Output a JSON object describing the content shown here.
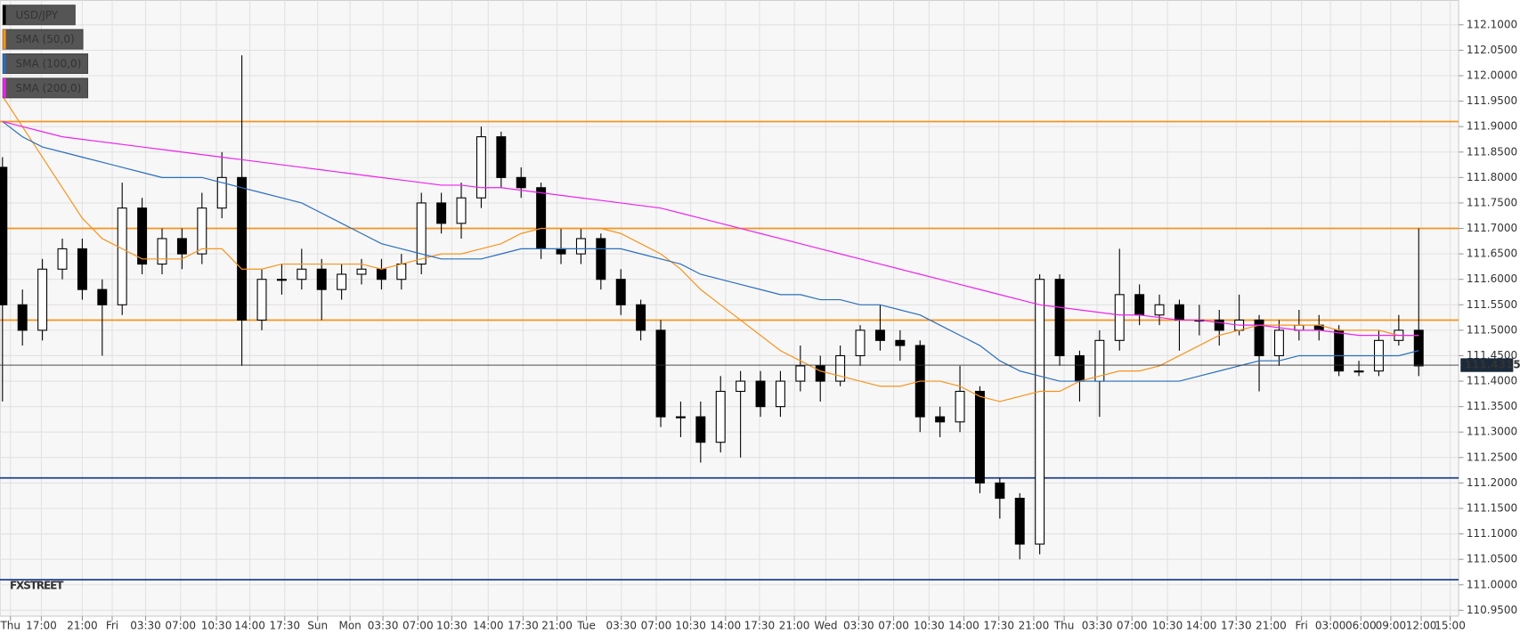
{
  "chart_data": {
    "type": "candlestick",
    "watermark": "FXSTREET",
    "x": [
      0,
      4,
      8,
      12,
      16,
      20,
      24,
      28,
      32,
      36,
      40,
      44,
      48,
      52,
      56,
      60,
      64,
      68,
      72,
      76,
      80,
      84,
      88,
      92,
      96,
      100,
      104,
      108,
      112,
      116,
      120,
      124,
      128,
      132,
      136,
      140,
      144,
      148,
      152,
      156,
      160,
      164,
      168,
      172,
      176,
      180,
      184,
      188,
      192,
      196,
      200,
      204,
      208,
      212,
      216,
      220,
      224,
      228,
      232,
      236,
      240,
      244,
      248,
      252,
      256,
      260,
      264,
      268,
      272,
      276,
      280,
      284
    ],
    "xlim": [
      -0.5,
      292
    ],
    "xticks": [
      {
        "value": 1.6,
        "label": "Thu"
      },
      {
        "value": 7.8,
        "label": "17:00"
      },
      {
        "value": 16,
        "label": "21:00"
      },
      {
        "value": 22,
        "label": "Fri"
      },
      {
        "value": 28.7,
        "label": "03:30"
      },
      {
        "value": 35.7,
        "label": "07:00"
      },
      {
        "value": 42.9,
        "label": "10:30"
      },
      {
        "value": 49.6,
        "label": "14:00"
      },
      {
        "value": 56.6,
        "label": "17:30"
      },
      {
        "value": 63.2,
        "label": "Sun"
      },
      {
        "value": 69.7,
        "label": "Mon"
      },
      {
        "value": 76.3,
        "label": "03:30"
      },
      {
        "value": 83.3,
        "label": "07:00"
      },
      {
        "value": 90.1,
        "label": "10:30"
      },
      {
        "value": 97.4,
        "label": "14:00"
      },
      {
        "value": 104.4,
        "label": "17:30"
      },
      {
        "value": 111.2,
        "label": "21:00"
      },
      {
        "value": 117.1,
        "label": "Tue"
      },
      {
        "value": 124.1,
        "label": "03:30"
      },
      {
        "value": 131.1,
        "label": "07:00"
      },
      {
        "value": 138,
        "label": "10:30"
      },
      {
        "value": 145,
        "label": "14:00"
      },
      {
        "value": 151.8,
        "label": "17:30"
      },
      {
        "value": 158.8,
        "label": "21:00"
      },
      {
        "value": 165.1,
        "label": "Wed"
      },
      {
        "value": 171.7,
        "label": "03:30"
      },
      {
        "value": 178.7,
        "label": "07:00"
      },
      {
        "value": 185.8,
        "label": "10:30"
      },
      {
        "value": 192.8,
        "label": "14:00"
      },
      {
        "value": 199.8,
        "label": "17:30"
      },
      {
        "value": 206.8,
        "label": "21:00"
      },
      {
        "value": 212.9,
        "label": "Thu"
      },
      {
        "value": 219.5,
        "label": "03:30"
      },
      {
        "value": 226.5,
        "label": "07:00"
      },
      {
        "value": 233.6,
        "label": "10:30"
      },
      {
        "value": 240.4,
        "label": "14:00"
      },
      {
        "value": 247.4,
        "label": "17:30"
      },
      {
        "value": 254.4,
        "label": "21:00"
      },
      {
        "value": 260.5,
        "label": "Fri"
      },
      {
        "value": 266.3,
        "label": "03:00"
      },
      {
        "value": 272.4,
        "label": "06:00"
      },
      {
        "value": 278.4,
        "label": "09:00"
      },
      {
        "value": 284.5,
        "label": "12:00"
      },
      {
        "value": 290.3,
        "label": "15:00"
      }
    ],
    "ylim": [
      110.9385,
      112.148
    ],
    "yticks": [
      {
        "value": 110.95,
        "label": "110.9500"
      },
      {
        "value": 111,
        "label": "111.0000"
      },
      {
        "value": 111.05,
        "label": "111.0500"
      },
      {
        "value": 111.1,
        "label": "111.1000"
      },
      {
        "value": 111.15,
        "label": "111.1500"
      },
      {
        "value": 111.2,
        "label": "111.2000"
      },
      {
        "value": 111.25,
        "label": "111.2500"
      },
      {
        "value": 111.3,
        "label": "111.3000"
      },
      {
        "value": 111.35,
        "label": "111.3500"
      },
      {
        "value": 111.4,
        "label": "111.4000"
      },
      {
        "value": 111.45,
        "label": "111.4500"
      },
      {
        "value": 111.5,
        "label": "111.5000"
      },
      {
        "value": 111.55,
        "label": "111.5500"
      },
      {
        "value": 111.6,
        "label": "111.6000"
      },
      {
        "value": 111.65,
        "label": "111.6500"
      },
      {
        "value": 111.7,
        "label": "111.7000"
      },
      {
        "value": 111.75,
        "label": "111.7500"
      },
      {
        "value": 111.8,
        "label": "111.8000"
      },
      {
        "value": 111.85,
        "label": "111.8500"
      },
      {
        "value": 111.9,
        "label": "111.9000"
      },
      {
        "value": 111.95,
        "label": "111.9500"
      },
      {
        "value": 112,
        "label": "112.0000"
      },
      {
        "value": 112.05,
        "label": "112.0500"
      },
      {
        "value": 112.1,
        "label": "112.1000"
      }
    ],
    "grid": true,
    "series": [
      {
        "name": "USD/JPY",
        "color": "#000000",
        "open": [
          111.82,
          111.55,
          111.5,
          111.62,
          111.66,
          111.58,
          111.55,
          111.74,
          111.63,
          111.68,
          111.65,
          111.74,
          111.8,
          111.52,
          111.6,
          111.6,
          111.62,
          111.58,
          111.61,
          111.62,
          111.6,
          111.63,
          111.75,
          111.71,
          111.76,
          111.88,
          111.8,
          111.78,
          111.66,
          111.65,
          111.68,
          111.6,
          111.55,
          111.5,
          111.33,
          111.33,
          111.28,
          111.38,
          111.4,
          111.35,
          111.4,
          111.43,
          111.4,
          111.45,
          111.5,
          111.48,
          111.47,
          111.33,
          111.32,
          111.38,
          111.2,
          111.17,
          111.08,
          111.6,
          111.45,
          111.4,
          111.48,
          111.57,
          111.53,
          111.55,
          111.52,
          111.52,
          111.5,
          111.52,
          111.45,
          111.5,
          111.51,
          111.5,
          111.42,
          111.42,
          111.48,
          111.5
        ],
        "high": [
          111.84,
          111.58,
          111.64,
          111.68,
          111.68,
          111.6,
          111.79,
          111.76,
          111.7,
          111.7,
          111.77,
          111.85,
          112.04,
          111.62,
          111.63,
          111.66,
          111.64,
          111.63,
          111.64,
          111.64,
          111.65,
          111.77,
          111.77,
          111.79,
          111.9,
          111.89,
          111.82,
          111.79,
          111.7,
          111.7,
          111.69,
          111.62,
          111.56,
          111.52,
          111.36,
          111.36,
          111.41,
          111.42,
          111.42,
          111.42,
          111.47,
          111.45,
          111.47,
          111.51,
          111.55,
          111.5,
          111.48,
          111.35,
          111.43,
          111.39,
          111.21,
          111.18,
          111.61,
          111.61,
          111.46,
          111.5,
          111.66,
          111.59,
          111.57,
          111.56,
          111.55,
          111.54,
          111.57,
          111.53,
          111.52,
          111.54,
          111.53,
          111.51,
          111.44,
          111.5,
          111.53,
          111.7
        ],
        "low": [
          111.36,
          111.47,
          111.48,
          111.6,
          111.56,
          111.45,
          111.53,
          111.61,
          111.61,
          111.62,
          111.63,
          111.72,
          111.43,
          111.5,
          111.57,
          111.58,
          111.52,
          111.56,
          111.59,
          111.58,
          111.58,
          111.61,
          111.69,
          111.68,
          111.74,
          111.78,
          111.76,
          111.64,
          111.63,
          111.63,
          111.58,
          111.53,
          111.48,
          111.31,
          111.29,
          111.24,
          111.26,
          111.25,
          111.33,
          111.33,
          111.38,
          111.36,
          111.39,
          111.43,
          111.46,
          111.44,
          111.3,
          111.29,
          111.3,
          111.18,
          111.13,
          111.05,
          111.06,
          111.43,
          111.36,
          111.33,
          111.46,
          111.51,
          111.51,
          111.46,
          111.49,
          111.47,
          111.49,
          111.38,
          111.43,
          111.48,
          111.48,
          111.41,
          111.41,
          111.41,
          111.47,
          111.41
        ],
        "close": [
          111.55,
          111.5,
          111.62,
          111.66,
          111.58,
          111.55,
          111.74,
          111.63,
          111.68,
          111.65,
          111.74,
          111.8,
          111.52,
          111.6,
          111.6,
          111.62,
          111.58,
          111.61,
          111.62,
          111.6,
          111.63,
          111.75,
          111.71,
          111.76,
          111.88,
          111.8,
          111.78,
          111.66,
          111.65,
          111.68,
          111.6,
          111.55,
          111.5,
          111.33,
          111.33,
          111.28,
          111.38,
          111.4,
          111.35,
          111.4,
          111.43,
          111.4,
          111.45,
          111.5,
          111.48,
          111.47,
          111.33,
          111.32,
          111.38,
          111.2,
          111.17,
          111.08,
          111.6,
          111.45,
          111.4,
          111.48,
          111.57,
          111.53,
          111.55,
          111.52,
          111.52,
          111.5,
          111.52,
          111.45,
          111.5,
          111.51,
          111.5,
          111.42,
          111.42,
          111.48,
          111.5,
          111.43
        ]
      },
      {
        "name": "SMA (50,0)",
        "color": "#f7931e",
        "values": [
          111.96,
          111.9,
          111.84,
          111.78,
          111.72,
          111.68,
          111.66,
          111.64,
          111.64,
          111.64,
          111.66,
          111.66,
          111.62,
          111.62,
          111.63,
          111.63,
          111.63,
          111.63,
          111.63,
          111.62,
          111.63,
          111.64,
          111.65,
          111.65,
          111.66,
          111.67,
          111.69,
          111.7,
          111.7,
          111.7,
          111.7,
          111.69,
          111.67,
          111.65,
          111.62,
          111.58,
          111.55,
          111.52,
          111.49,
          111.46,
          111.44,
          111.42,
          111.41,
          111.4,
          111.39,
          111.39,
          111.4,
          111.4,
          111.39,
          111.37,
          111.36,
          111.37,
          111.38,
          111.38,
          111.4,
          111.41,
          111.42,
          111.42,
          111.43,
          111.45,
          111.47,
          111.49,
          111.5,
          111.51,
          111.51,
          111.51,
          111.51,
          111.5,
          111.5,
          111.5,
          111.49,
          111.49
        ]
      },
      {
        "name": "SMA (100,0)",
        "color": "#2a6ebb",
        "values": [
          111.91,
          111.88,
          111.86,
          111.85,
          111.84,
          111.83,
          111.82,
          111.81,
          111.8,
          111.8,
          111.8,
          111.79,
          111.78,
          111.77,
          111.76,
          111.75,
          111.73,
          111.71,
          111.69,
          111.67,
          111.66,
          111.65,
          111.64,
          111.64,
          111.64,
          111.65,
          111.66,
          111.66,
          111.66,
          111.66,
          111.66,
          111.66,
          111.65,
          111.64,
          111.63,
          111.61,
          111.6,
          111.59,
          111.58,
          111.57,
          111.57,
          111.56,
          111.56,
          111.55,
          111.55,
          111.54,
          111.53,
          111.51,
          111.49,
          111.47,
          111.44,
          111.42,
          111.41,
          111.4,
          111.4,
          111.4,
          111.4,
          111.4,
          111.4,
          111.4,
          111.41,
          111.42,
          111.43,
          111.44,
          111.44,
          111.45,
          111.45,
          111.45,
          111.45,
          111.45,
          111.45,
          111.46
        ]
      },
      {
        "name": "SMA (200,0)",
        "color": "#ee22ee",
        "values": [
          111.91,
          111.9,
          111.89,
          111.88,
          111.875,
          111.87,
          111.865,
          111.86,
          111.855,
          111.85,
          111.845,
          111.84,
          111.835,
          111.83,
          111.825,
          111.82,
          111.815,
          111.81,
          111.805,
          111.8,
          111.795,
          111.79,
          111.785,
          111.785,
          111.78,
          111.78,
          111.775,
          111.77,
          111.765,
          111.76,
          111.755,
          111.75,
          111.745,
          111.74,
          111.73,
          111.72,
          111.71,
          111.7,
          111.69,
          111.68,
          111.67,
          111.66,
          111.65,
          111.64,
          111.63,
          111.62,
          111.61,
          111.6,
          111.59,
          111.58,
          111.57,
          111.56,
          111.55,
          111.545,
          111.54,
          111.535,
          111.53,
          111.53,
          111.525,
          111.52,
          111.52,
          111.515,
          111.51,
          111.51,
          111.505,
          111.5,
          111.5,
          111.495,
          111.49,
          111.49,
          111.49,
          111.49
        ]
      }
    ],
    "hlines": [
      {
        "value": 111.91,
        "color": "#f7931e"
      },
      {
        "value": 111.7,
        "color": "#f7931e"
      },
      {
        "value": 111.52,
        "color": "#f7931e"
      },
      {
        "value": 111.21,
        "color": "#1f3f8f"
      },
      {
        "value": 111.01,
        "color": "#1f3f8f"
      }
    ],
    "last_price": 111.4315
  }
}
